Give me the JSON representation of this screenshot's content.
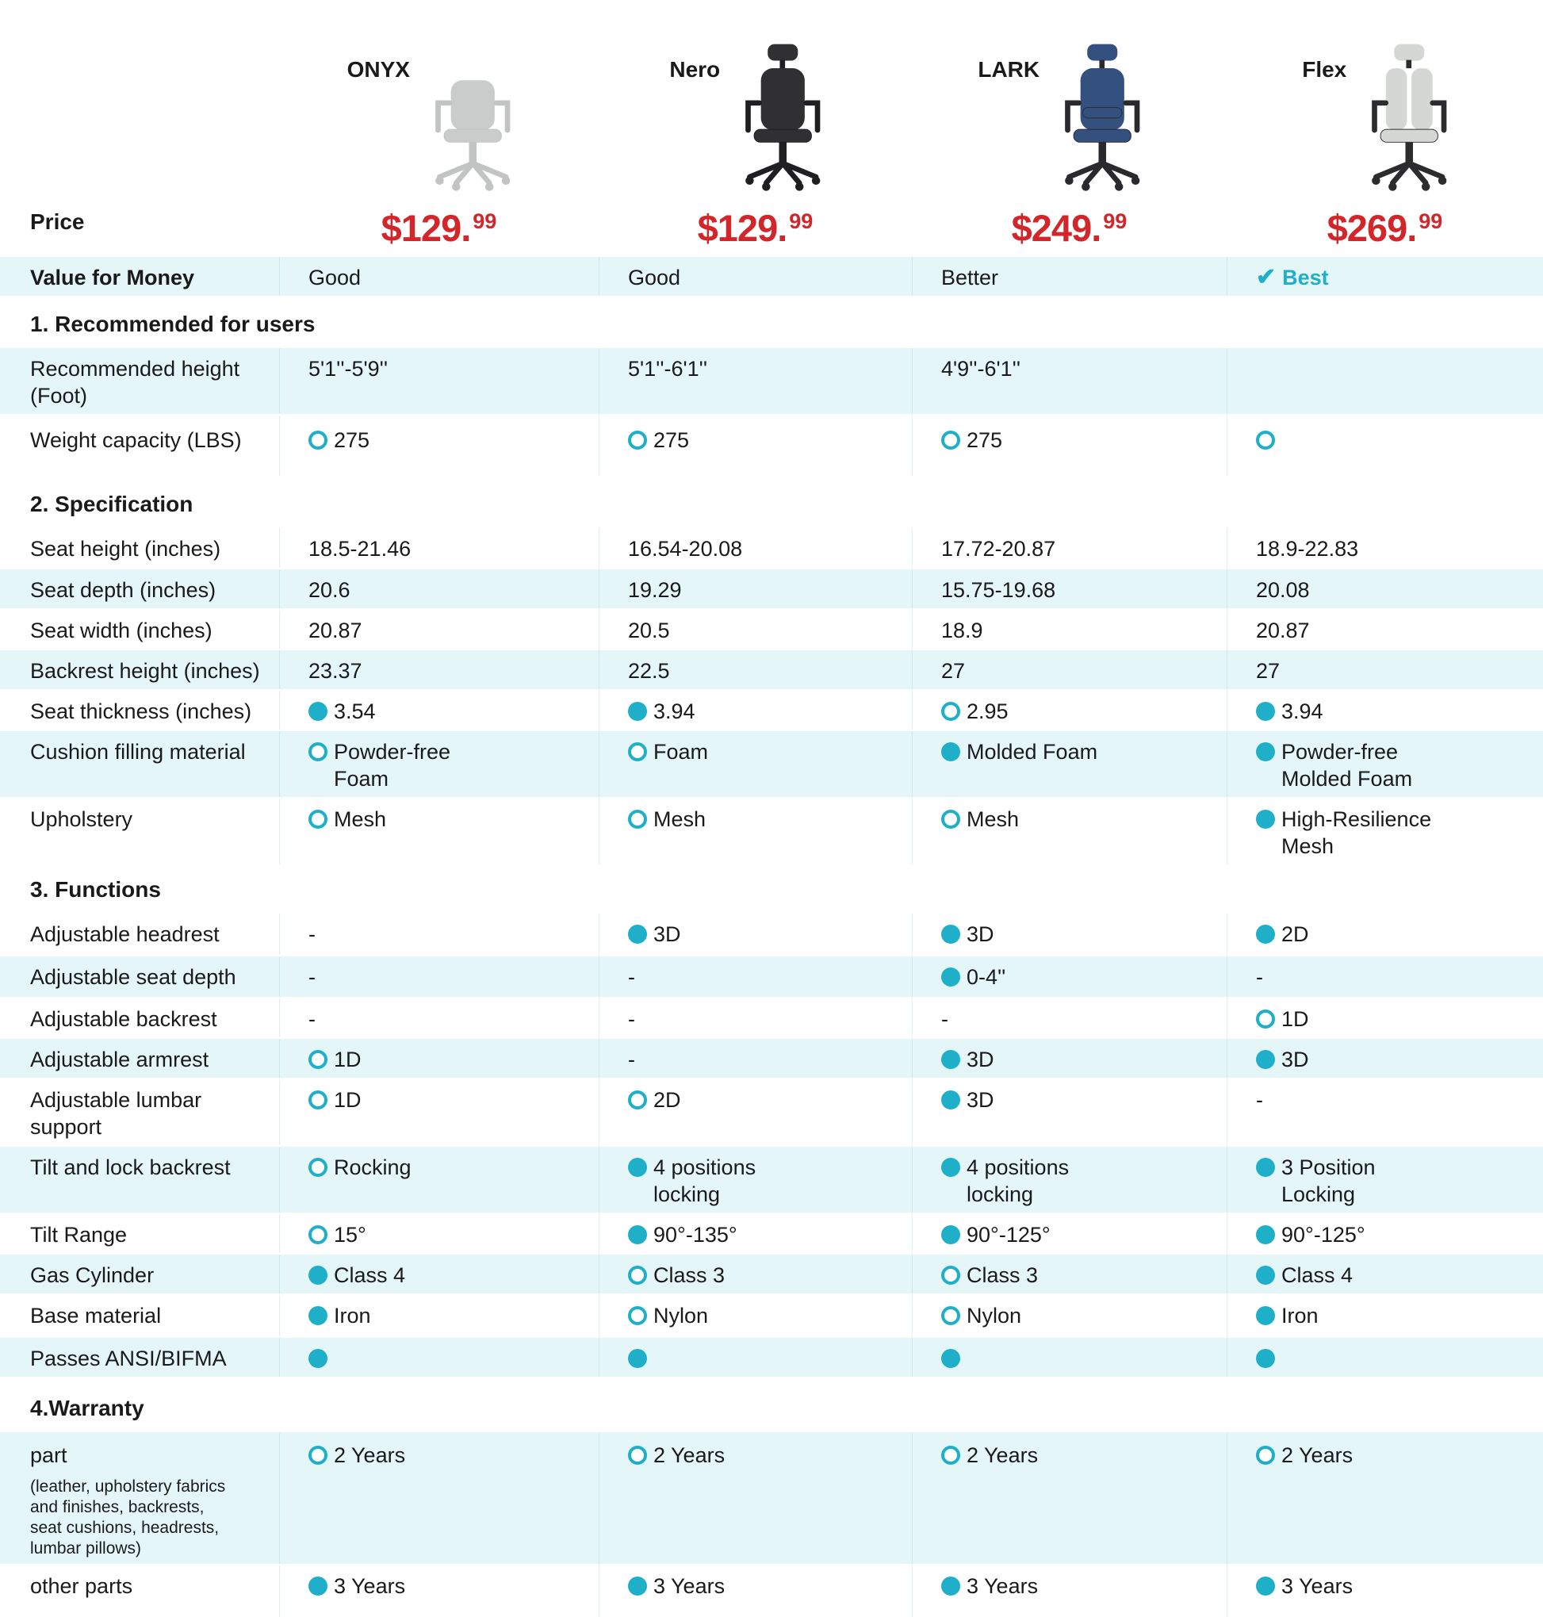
{
  "colors": {
    "accent": "#1FAFC8",
    "price_red": "#D2262B",
    "row_tint": "#E5F6F9",
    "text": "#1A1A1A"
  },
  "header": {
    "price_label": "Price",
    "products": [
      {
        "name": "ONYX",
        "price": "$129.",
        "cents": "99",
        "style": "onyx",
        "body_color": "#C9CCCB",
        "frame_color": "#C2C4C3",
        "icon": "office-chair-gray-midback"
      },
      {
        "name": "Nero",
        "price": "$129.",
        "cents": "99",
        "style": "nero",
        "body_color": "#303033",
        "frame_color": "#1F1F22",
        "icon": "office-chair-black-headrest"
      },
      {
        "name": "LARK",
        "price": "$249.",
        "cents": "99",
        "style": "lark",
        "body_color": "#33507E",
        "frame_color": "#2A2A2E",
        "icon": "office-chair-navy-headrest"
      },
      {
        "name": "Flex",
        "price": "$269.",
        "cents": "99",
        "style": "flex",
        "body_color": "#D5D7D4",
        "frame_color": "#2C2C2E",
        "icon": "office-chair-gray-dualback"
      }
    ]
  },
  "value_row": {
    "label": "Value for Money",
    "check_glyph": "✔",
    "cells": [
      {
        "text": "Good"
      },
      {
        "text": "Good"
      },
      {
        "text": "Better"
      },
      {
        "text": "Best",
        "check": true
      }
    ]
  },
  "sections": [
    {
      "title": "1. Recommended for users",
      "rows": [
        {
          "label": "Recommended height\n(Foot)",
          "cells": [
            {
              "text": "5'1''-5'9''"
            },
            {
              "text": "5'1''-6'1''"
            },
            {
              "text": "4'9''-6'1''"
            },
            {
              "text": ""
            }
          ]
        },
        {
          "label": "Weight capacity (LBS)",
          "cells": [
            {
              "dot": "open",
              "text": "275"
            },
            {
              "dot": "open",
              "text": "275"
            },
            {
              "dot": "open",
              "text": "275"
            },
            {
              "dot": "open",
              "text": ""
            }
          ]
        }
      ]
    },
    {
      "title": "2. Specification",
      "rows": [
        {
          "label": "Seat height (inches)",
          "cells": [
            {
              "text": "18.5-21.46"
            },
            {
              "text": "16.54-20.08"
            },
            {
              "text": "17.72-20.87"
            },
            {
              "text": "18.9-22.83"
            }
          ]
        },
        {
          "label": "Seat depth (inches)",
          "cells": [
            {
              "text": "20.6"
            },
            {
              "text": "19.29"
            },
            {
              "text": "15.75-19.68"
            },
            {
              "text": "20.08"
            }
          ]
        },
        {
          "label": "Seat width (inches)",
          "cells": [
            {
              "text": "20.87"
            },
            {
              "text": "20.5"
            },
            {
              "text": "18.9"
            },
            {
              "text": "20.87"
            }
          ]
        },
        {
          "label": "Backrest height (inches)",
          "cells": [
            {
              "text": "23.37"
            },
            {
              "text": "22.5"
            },
            {
              "text": "27"
            },
            {
              "text": "27"
            }
          ]
        },
        {
          "label": "Seat thickness (inches)",
          "cells": [
            {
              "dot": "filled",
              "text": "3.54"
            },
            {
              "dot": "filled",
              "text": "3.94"
            },
            {
              "dot": "open",
              "text": "2.95"
            },
            {
              "dot": "filled",
              "text": "3.94"
            }
          ]
        },
        {
          "label": "Cushion filling material",
          "cells": [
            {
              "dot": "open",
              "text": "Powder-free\nFoam"
            },
            {
              "dot": "open",
              "text": "Foam"
            },
            {
              "dot": "filled",
              "text": "Molded Foam"
            },
            {
              "dot": "filled",
              "text": "Powder-free\nMolded Foam"
            }
          ]
        },
        {
          "label": "Upholstery",
          "cells": [
            {
              "dot": "open",
              "text": "Mesh"
            },
            {
              "dot": "open",
              "text": "Mesh"
            },
            {
              "dot": "open",
              "text": "Mesh"
            },
            {
              "dot": "filled",
              "text": "High-Resilience\nMesh"
            }
          ]
        }
      ]
    },
    {
      "title": "3. Functions",
      "rows": [
        {
          "label": "Adjustable headrest",
          "cells": [
            {
              "text": "-"
            },
            {
              "dot": "filled",
              "text": "3D"
            },
            {
              "dot": "filled",
              "text": "3D"
            },
            {
              "dot": "filled",
              "text": "2D"
            }
          ]
        },
        {
          "label": "Adjustable seat depth",
          "cells": [
            {
              "text": "-"
            },
            {
              "text": "-"
            },
            {
              "dot": "filled",
              "text": "0-4''"
            },
            {
              "text": "-"
            }
          ]
        },
        {
          "label": "Adjustable backrest",
          "cells": [
            {
              "text": "-"
            },
            {
              "text": "-"
            },
            {
              "text": "-"
            },
            {
              "dot": "open",
              "text": "1D"
            }
          ]
        },
        {
          "label": "Adjustable armrest",
          "cells": [
            {
              "dot": "open",
              "text": "1D"
            },
            {
              "text": "-"
            },
            {
              "dot": "filled",
              "text": "3D"
            },
            {
              "dot": "filled",
              "text": "3D"
            }
          ]
        },
        {
          "label": "Adjustable lumbar\nsupport",
          "cells": [
            {
              "dot": "open",
              "text": "1D"
            },
            {
              "dot": "open",
              "text": "2D"
            },
            {
              "dot": "filled",
              "text": "3D"
            },
            {
              "text": "-"
            }
          ]
        },
        {
          "label": "Tilt and lock backrest",
          "cells": [
            {
              "dot": "open",
              "text": "Rocking"
            },
            {
              "dot": "filled",
              "text": "4 positions\nlocking"
            },
            {
              "dot": "filled",
              "text": "4 positions\nlocking"
            },
            {
              "dot": "filled",
              "text": "3 Position\nLocking"
            }
          ]
        },
        {
          "label": "Tilt Range",
          "cells": [
            {
              "dot": "open",
              "text": "15°"
            },
            {
              "dot": "filled",
              "text": "90°-135°"
            },
            {
              "dot": "filled",
              "text": "90°-125°"
            },
            {
              "dot": "filled",
              "text": "90°-125°"
            }
          ]
        },
        {
          "label": "Gas Cylinder",
          "cells": [
            {
              "dot": "filled",
              "text": "Class 4"
            },
            {
              "dot": "open",
              "text": "Class 3"
            },
            {
              "dot": "open",
              "text": "Class 3"
            },
            {
              "dot": "filled",
              "text": "Class 4"
            }
          ]
        },
        {
          "label": "Base material",
          "cells": [
            {
              "dot": "filled",
              "text": "Iron"
            },
            {
              "dot": "open",
              "text": "Nylon"
            },
            {
              "dot": "open",
              "text": "Nylon"
            },
            {
              "dot": "filled",
              "text": "Iron"
            }
          ]
        },
        {
          "label": "Passes ANSI/BIFMA",
          "cells": [
            {
              "dot": "filled",
              "text": ""
            },
            {
              "dot": "filled",
              "text": ""
            },
            {
              "dot": "filled",
              "text": ""
            },
            {
              "dot": "filled",
              "text": ""
            }
          ]
        }
      ]
    },
    {
      "title": "4.Warranty",
      "rows": [
        {
          "label": "part",
          "sublabel": "(leather, upholstery fabrics and finishes, backrests, seat cushions, headrests, lumbar pillows)",
          "cells": [
            {
              "dot": "open",
              "text": "2 Years"
            },
            {
              "dot": "open",
              "text": "2 Years"
            },
            {
              "dot": "open",
              "text": "2 Years"
            },
            {
              "dot": "open",
              "text": "2 Years"
            }
          ]
        },
        {
          "label": "other parts",
          "cells": [
            {
              "dot": "filled",
              "text": "3 Years"
            },
            {
              "dot": "filled",
              "text": "3 Years"
            },
            {
              "dot": "filled",
              "text": "3 Years"
            },
            {
              "dot": "filled",
              "text": "3 Years"
            }
          ]
        }
      ]
    }
  ]
}
